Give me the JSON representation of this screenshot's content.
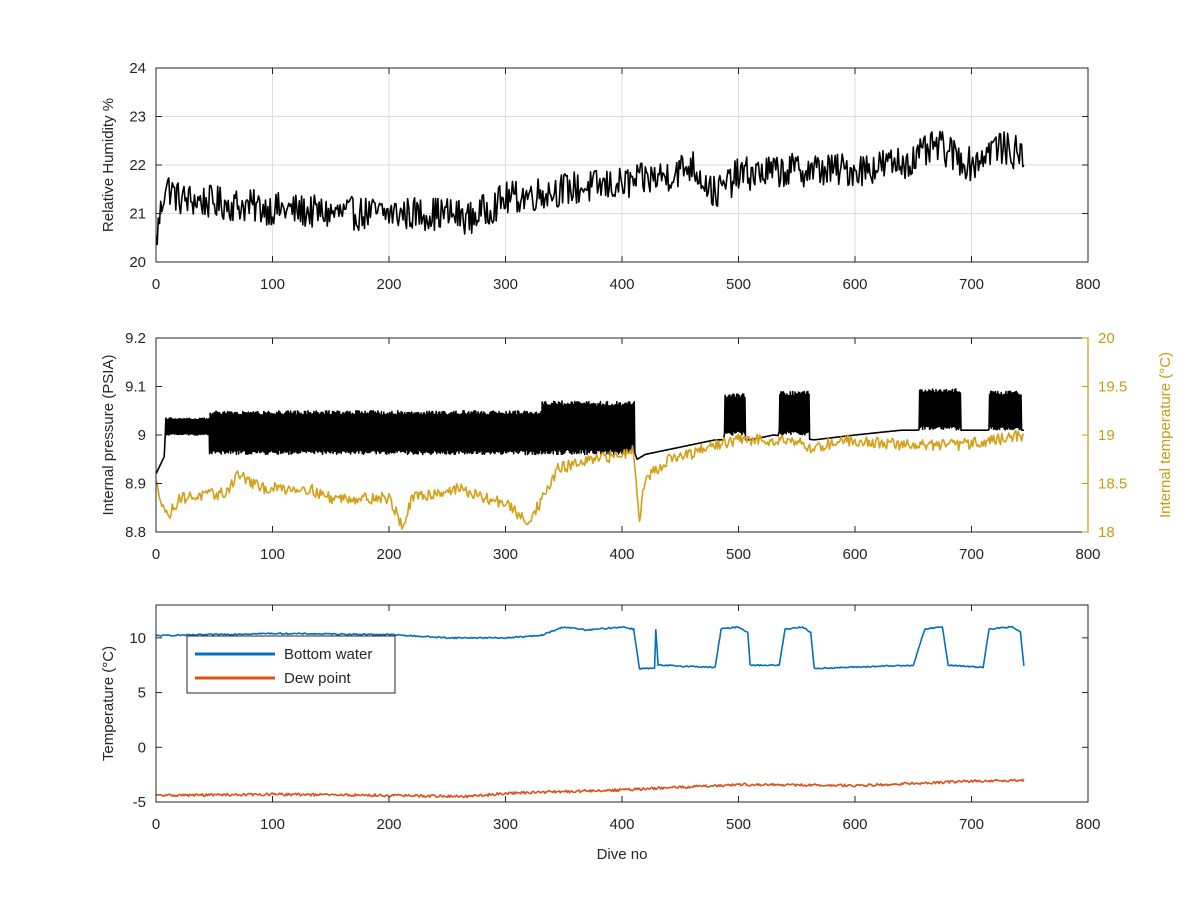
{
  "chart_data": [
    {
      "type": "line",
      "xlabel": "",
      "ylabel": "Relative Humidity %",
      "xlim": [
        0,
        800
      ],
      "ylim": [
        20,
        24
      ],
      "xticks": [
        "0",
        "100",
        "200",
        "300",
        "400",
        "500",
        "600",
        "700",
        "800"
      ],
      "yticks": [
        "20",
        "21",
        "22",
        "23",
        "24"
      ],
      "grid": true,
      "series": [
        {
          "color": "#000000",
          "noise": 0.35,
          "points": [
            [
              0,
              20.4
            ],
            [
              3,
              20.9
            ],
            [
              8,
              21.6
            ],
            [
              20,
              21.3
            ],
            [
              60,
              21.2
            ],
            [
              100,
              21.1
            ],
            [
              150,
              21.0
            ],
            [
              200,
              21.0
            ],
            [
              250,
              21.0
            ],
            [
              270,
              20.9
            ],
            [
              300,
              21.3
            ],
            [
              350,
              21.5
            ],
            [
              400,
              21.6
            ],
            [
              440,
              21.8
            ],
            [
              460,
              22.0
            ],
            [
              480,
              21.4
            ],
            [
              500,
              21.8
            ],
            [
              550,
              21.9
            ],
            [
              600,
              21.9
            ],
            [
              650,
              22.1
            ],
            [
              670,
              22.4
            ],
            [
              700,
              22.0
            ],
            [
              720,
              22.4
            ],
            [
              745,
              22.2
            ]
          ]
        }
      ]
    },
    {
      "type": "line",
      "xlabel": "",
      "ylabel": "Internal pressure (PSIA)",
      "ylabel_right": "Internal temperature (°C)",
      "xlim": [
        0,
        800
      ],
      "ylim": [
        8.8,
        9.2
      ],
      "ylim_right": [
        18,
        20
      ],
      "xticks": [
        "0",
        "100",
        "200",
        "300",
        "400",
        "500",
        "600",
        "700",
        "800"
      ],
      "yticks": [
        "8.8",
        "8.9",
        "9",
        "9.1",
        "9.2"
      ],
      "yticks_right": [
        "18",
        "18.5",
        "19",
        "19.5",
        "20"
      ],
      "grid": false,
      "series": [
        {
          "axis": "left",
          "color": "#000000",
          "osc": [
            [
              8,
              45,
              9.0,
              9.035
            ],
            [
              45,
              330,
              8.96,
              9.05
            ],
            [
              330,
              410,
              8.96,
              9.07
            ],
            [
              488,
              505,
              9.0,
              9.085
            ],
            [
              535,
              560,
              9.0,
              9.09
            ],
            [
              655,
              690,
              9.01,
              9.095
            ],
            [
              715,
              742,
              9.01,
              9.09
            ]
          ],
          "points": [
            [
              0,
              8.92
            ],
            [
              8,
              8.96
            ],
            [
              410,
              8.97
            ],
            [
              413,
              8.95
            ],
            [
              420,
              8.96
            ],
            [
              440,
              8.97
            ],
            [
              460,
              8.98
            ],
            [
              480,
              8.99
            ],
            [
              510,
              8.99
            ],
            [
              530,
              9.0
            ],
            [
              565,
              8.99
            ],
            [
              600,
              9.0
            ],
            [
              640,
              9.01
            ],
            [
              700,
              9.01
            ],
            [
              745,
              9.01
            ]
          ]
        },
        {
          "axis": "right",
          "color": "#D4A017",
          "noise": 0.06,
          "points": [
            [
              0,
              18.5
            ],
            [
              10,
              18.15
            ],
            [
              20,
              18.35
            ],
            [
              60,
              18.4
            ],
            [
              70,
              18.6
            ],
            [
              90,
              18.45
            ],
            [
              130,
              18.45
            ],
            [
              150,
              18.35
            ],
            [
              200,
              18.35
            ],
            [
              212,
              18.05
            ],
            [
              220,
              18.35
            ],
            [
              260,
              18.45
            ],
            [
              280,
              18.35
            ],
            [
              300,
              18.3
            ],
            [
              318,
              18.1
            ],
            [
              330,
              18.3
            ],
            [
              345,
              18.65
            ],
            [
              360,
              18.7
            ],
            [
              400,
              18.8
            ],
            [
              410,
              18.85
            ],
            [
              415,
              18.15
            ],
            [
              420,
              18.55
            ],
            [
              440,
              18.75
            ],
            [
              460,
              18.8
            ],
            [
              480,
              18.9
            ],
            [
              500,
              18.95
            ],
            [
              550,
              18.95
            ],
            [
              560,
              18.85
            ],
            [
              590,
              18.95
            ],
            [
              640,
              18.9
            ],
            [
              690,
              18.9
            ],
            [
              720,
              18.95
            ],
            [
              745,
              19.0
            ]
          ]
        }
      ]
    },
    {
      "type": "line",
      "xlabel": "Dive no",
      "ylabel": "Temperature (°C)",
      "xlim": [
        0,
        800
      ],
      "ylim": [
        -5,
        13
      ],
      "xticks": [
        "0",
        "100",
        "200",
        "300",
        "400",
        "500",
        "600",
        "700",
        "800"
      ],
      "yticks": [
        "-5",
        "0",
        "5",
        "10"
      ],
      "grid": false,
      "legend_position": "top-left",
      "series": [
        {
          "name": "Bottom water",
          "color": "#0072BD",
          "noise": 0.06,
          "points": [
            [
              0,
              10.2
            ],
            [
              100,
              10.4
            ],
            [
              200,
              10.3
            ],
            [
              250,
              10.0
            ],
            [
              300,
              10.0
            ],
            [
              330,
              10.2
            ],
            [
              350,
              11.0
            ],
            [
              370,
              10.7
            ],
            [
              400,
              11.0
            ],
            [
              410,
              10.8
            ],
            [
              415,
              7.2
            ],
            [
              428,
              7.2
            ],
            [
              429,
              10.7
            ],
            [
              431,
              7.5
            ],
            [
              480,
              7.3
            ],
            [
              485,
              10.8
            ],
            [
              500,
              11.0
            ],
            [
              508,
              10.5
            ],
            [
              510,
              7.5
            ],
            [
              535,
              7.5
            ],
            [
              540,
              10.8
            ],
            [
              555,
              11.0
            ],
            [
              562,
              10.5
            ],
            [
              565,
              7.2
            ],
            [
              650,
              7.5
            ],
            [
              660,
              10.8
            ],
            [
              675,
              11.0
            ],
            [
              680,
              7.5
            ],
            [
              710,
              7.3
            ],
            [
              715,
              10.8
            ],
            [
              735,
              11.0
            ],
            [
              742,
              10.5
            ],
            [
              745,
              7.4
            ]
          ]
        },
        {
          "name": "Dew point",
          "color": "#D95319",
          "noise": 0.12,
          "points": [
            [
              0,
              -4.4
            ],
            [
              100,
              -4.3
            ],
            [
              200,
              -4.4
            ],
            [
              270,
              -4.5
            ],
            [
              300,
              -4.2
            ],
            [
              400,
              -3.9
            ],
            [
              500,
              -3.4
            ],
            [
              600,
              -3.5
            ],
            [
              700,
              -3.1
            ],
            [
              745,
              -3.0
            ]
          ]
        }
      ]
    }
  ]
}
